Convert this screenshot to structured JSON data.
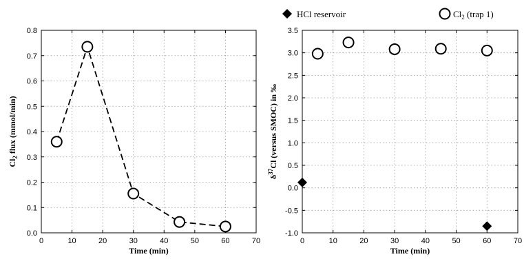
{
  "chart_data": [
    {
      "type": "line",
      "xlabel": "Time (min)",
      "ylabel_main": "Cl",
      "ylabel_sub": "2",
      "ylabel_rest": " flux (mmol/min)",
      "xlim": [
        0,
        70
      ],
      "ylim": [
        0,
        0.8
      ],
      "xticks": [
        "0",
        "10",
        "20",
        "30",
        "40",
        "50",
        "60",
        "70"
      ],
      "yticks": [
        "0.0",
        "0.1",
        "0.2",
        "0.3",
        "0.4",
        "0.5",
        "0.6",
        "0.7",
        "0.8"
      ],
      "grid": true,
      "series": [
        {
          "x": [
            5,
            15,
            30,
            45,
            60
          ],
          "y": [
            0.36,
            0.735,
            0.155,
            0.043,
            0.025
          ],
          "marker": "open-circle",
          "line": "dashed"
        }
      ]
    },
    {
      "type": "scatter",
      "xlabel": "Time (min)",
      "ylabel_pre": "δ",
      "ylabel_sup": "37",
      "ylabel_rest": "Cl (versus SMOC) in ‰",
      "xlim": [
        0,
        70
      ],
      "ylim": [
        -1.0,
        3.5
      ],
      "xticks": [
        "0",
        "10",
        "20",
        "30",
        "40",
        "50",
        "60",
        "70"
      ],
      "yticks": [
        "-1.0",
        "-0.5",
        "0.0",
        "0.5",
        "1.0",
        "1.5",
        "2.0",
        "2.5",
        "3.0",
        "3.5"
      ],
      "grid": true,
      "legend_placement": "top",
      "series": [
        {
          "name": "HCl reservoir",
          "x": [
            0,
            60
          ],
          "y": [
            0.12,
            -0.85
          ],
          "marker": "filled-diamond"
        },
        {
          "name_main": "Cl",
          "name_sub": "2",
          "name_rest": " (trap 1)",
          "x": [
            5,
            15,
            30,
            45,
            60
          ],
          "y": [
            2.98,
            3.23,
            3.08,
            3.09,
            3.05
          ],
          "marker": "open-circle"
        }
      ]
    }
  ]
}
